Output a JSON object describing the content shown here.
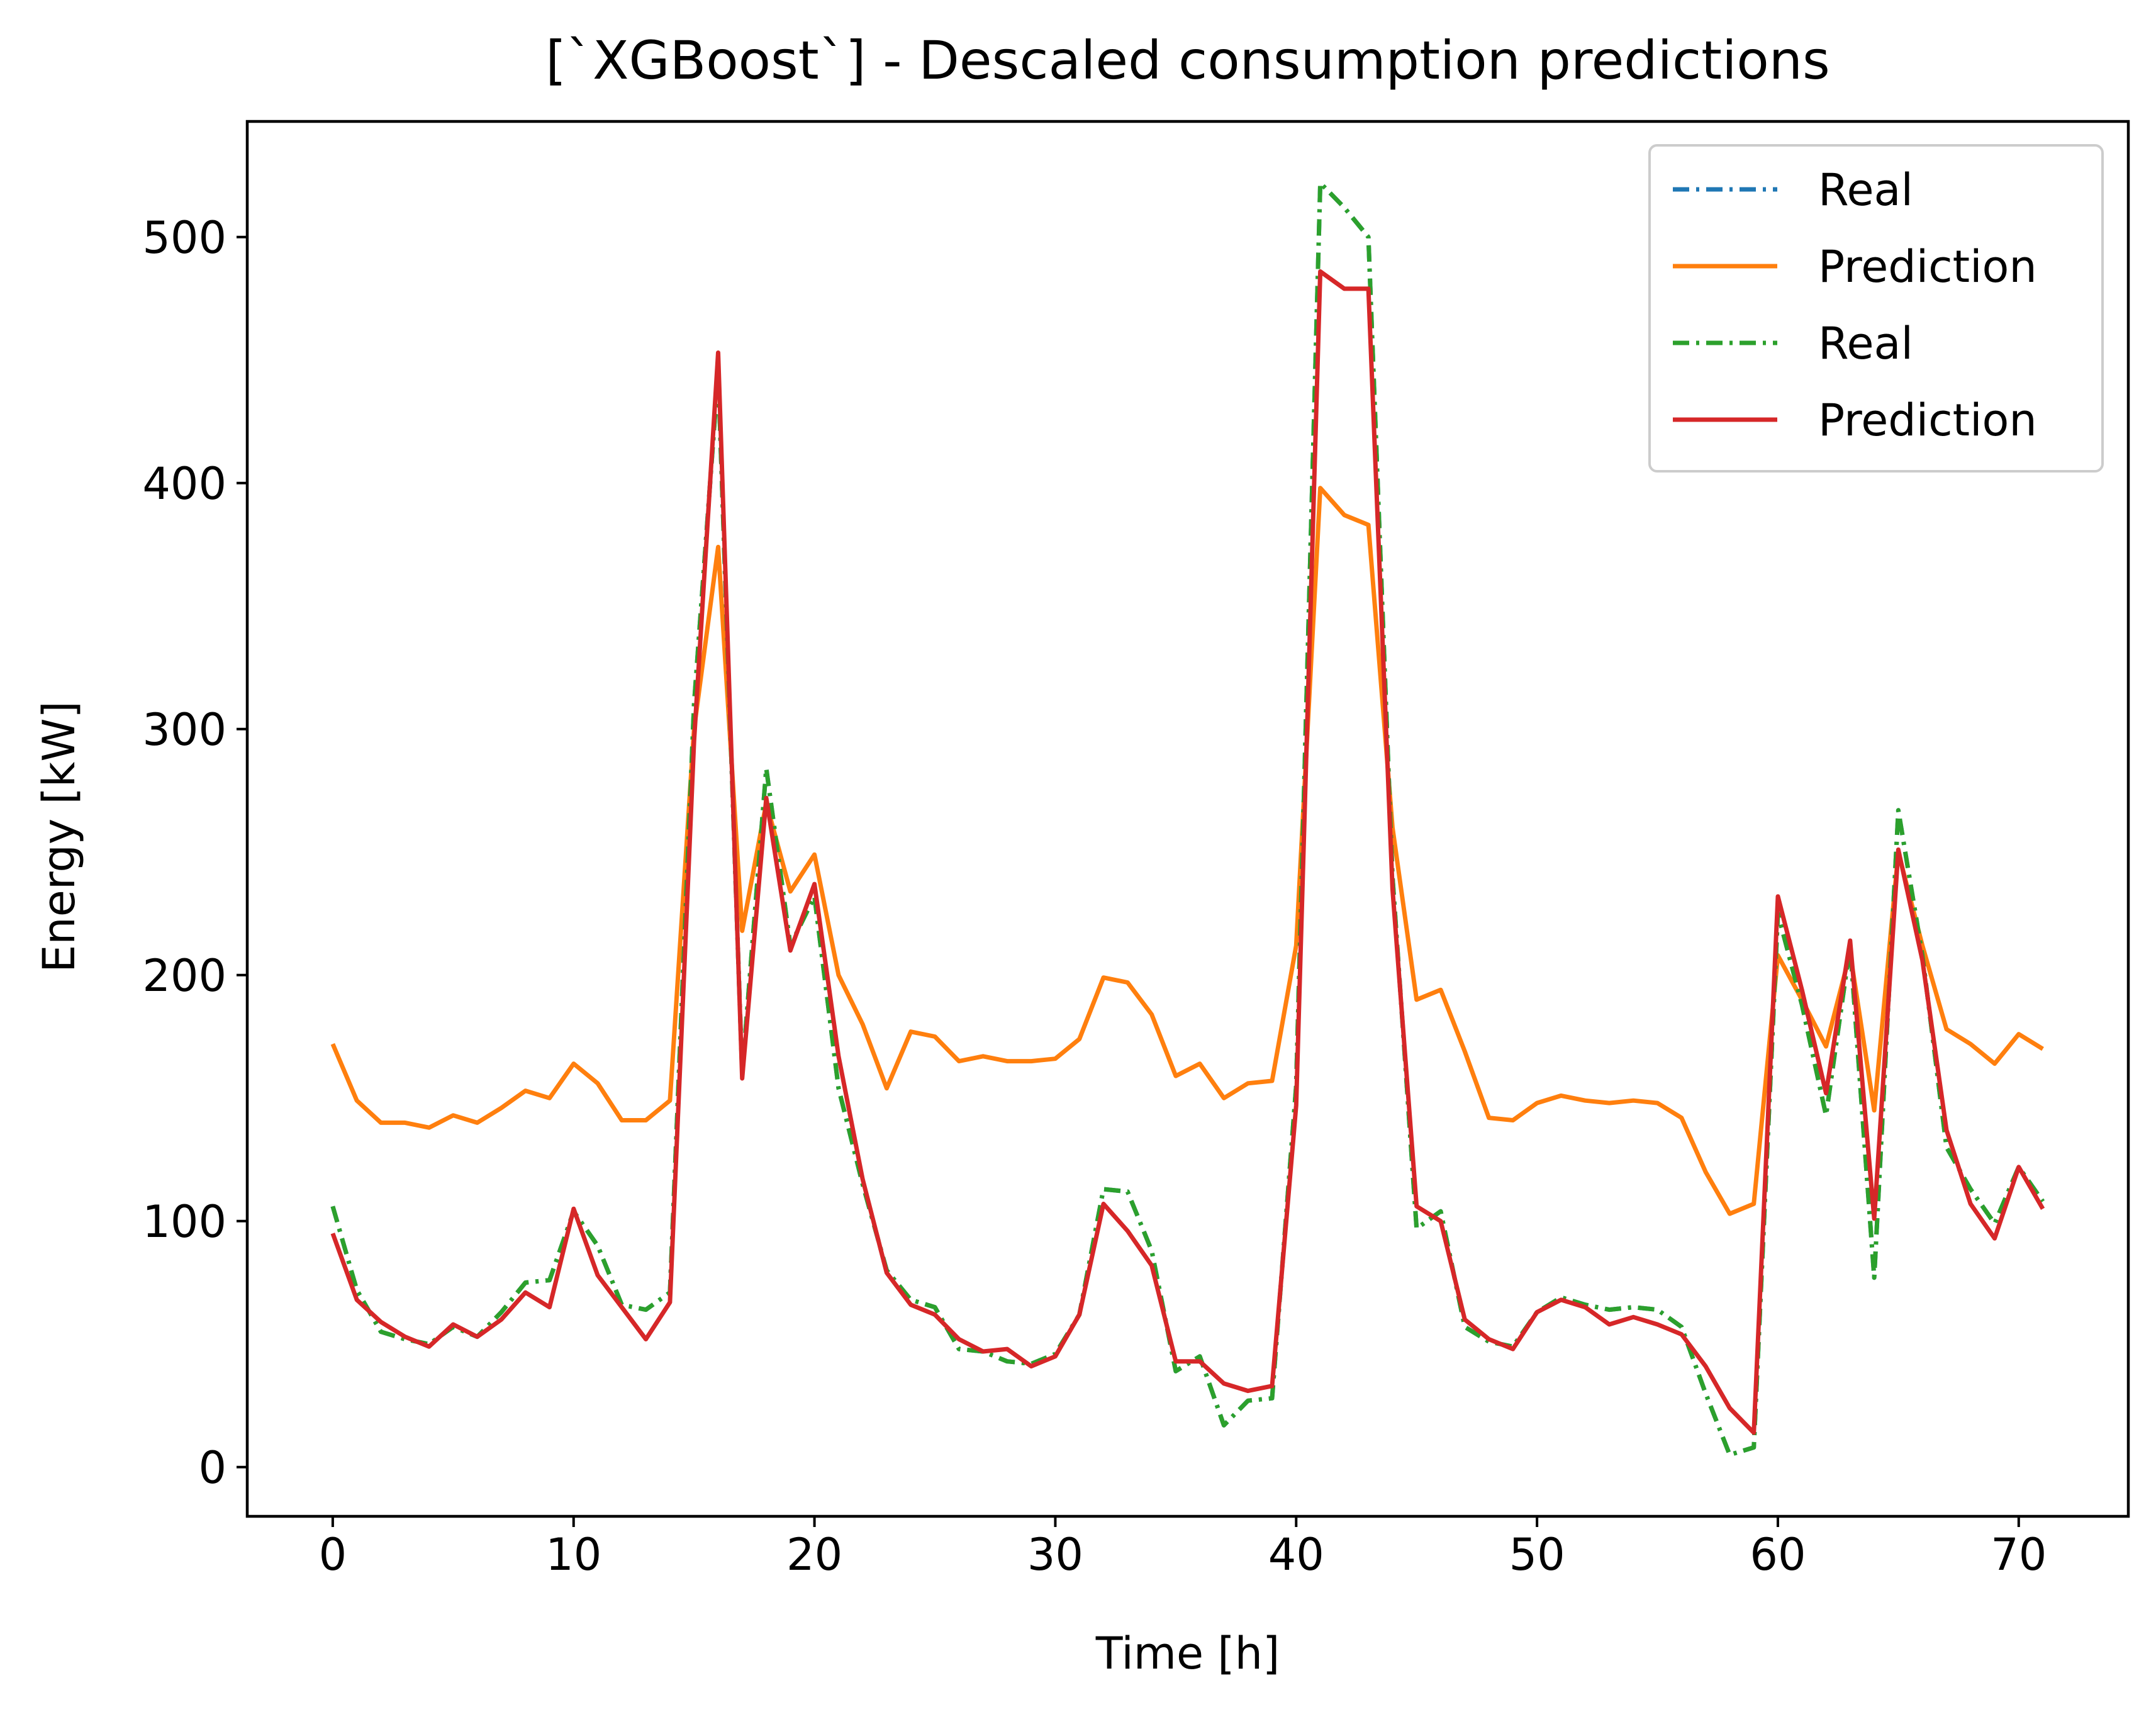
{
  "chart_data": {
    "type": "line",
    "title": "[`XGBoost`] - Descaled consumption predictions",
    "xlabel": "Time [h]",
    "ylabel": "Energy [kW]",
    "xlim": [
      -3.55,
      74.55
    ],
    "ylim": [
      -20,
      547
    ],
    "xticks": [
      0,
      10,
      20,
      30,
      40,
      50,
      60,
      70
    ],
    "xtick_labels": [
      "0",
      "10",
      "20",
      "30",
      "40",
      "50",
      "60",
      "70"
    ],
    "yticks": [
      0,
      100,
      200,
      300,
      400,
      500
    ],
    "ytick_labels": [
      "0",
      "100",
      "200",
      "300",
      "400",
      "500"
    ],
    "grid": false,
    "legend_position": "top-right",
    "x": [
      0,
      1,
      2,
      3,
      4,
      5,
      6,
      7,
      8,
      9,
      10,
      11,
      12,
      13,
      14,
      15,
      16,
      17,
      18,
      19,
      20,
      21,
      22,
      23,
      24,
      25,
      26,
      27,
      28,
      29,
      30,
      31,
      32,
      33,
      34,
      35,
      36,
      37,
      38,
      39,
      40,
      41,
      42,
      43,
      44,
      45,
      46,
      47,
      48,
      49,
      50,
      51,
      52,
      53,
      54,
      55,
      56,
      57,
      58,
      59,
      60,
      61,
      62,
      63,
      64,
      65,
      66,
      67,
      68,
      69,
      70,
      71
    ],
    "series": [
      {
        "name": "Real",
        "color": "#1f77b4",
        "style": "dashdot",
        "values": [
          106,
          72,
          55,
          52,
          50,
          57,
          53,
          63,
          75,
          76,
          104,
          90,
          66,
          64,
          71,
          310,
          445,
          160,
          284,
          212,
          232,
          154,
          115,
          80,
          68,
          65,
          48,
          47,
          43,
          42,
          46,
          62,
          113,
          112,
          88,
          39,
          45,
          17,
          27,
          28,
          155,
          522,
          512,
          500,
          240,
          97,
          104,
          57,
          51,
          49,
          63,
          69,
          66,
          64,
          65,
          64,
          57,
          30,
          5,
          8,
          225,
          188,
          143,
          212,
          77,
          267,
          208,
          130,
          113,
          99,
          122,
          108
        ]
      },
      {
        "name": "Prediction",
        "color": "#ff7f0e",
        "style": "solid",
        "values": [
          172,
          149,
          140,
          140,
          138,
          143,
          140,
          146,
          153,
          150,
          164,
          156,
          141,
          141,
          149,
          300,
          374,
          218,
          270,
          234,
          249,
          200,
          180,
          154,
          177,
          175,
          165,
          167,
          165,
          165,
          166,
          174,
          199,
          197,
          184,
          159,
          164,
          150,
          156,
          157,
          212,
          398,
          387,
          383,
          260,
          190,
          194,
          169,
          142,
          141,
          148,
          151,
          149,
          148,
          149,
          148,
          142,
          120,
          103,
          107,
          208,
          190,
          171,
          209,
          145,
          250,
          212,
          178,
          172,
          164,
          176,
          170
        ]
      },
      {
        "name": "Real",
        "color": "#2ca02c",
        "style": "dashdot",
        "values": [
          106,
          72,
          55,
          52,
          50,
          57,
          53,
          63,
          75,
          76,
          104,
          90,
          66,
          64,
          71,
          310,
          445,
          160,
          284,
          212,
          232,
          154,
          115,
          80,
          68,
          65,
          48,
          47,
          43,
          42,
          46,
          62,
          113,
          112,
          88,
          39,
          45,
          17,
          27,
          28,
          155,
          522,
          512,
          500,
          240,
          97,
          104,
          57,
          51,
          49,
          63,
          69,
          66,
          64,
          65,
          64,
          57,
          30,
          5,
          8,
          225,
          188,
          143,
          212,
          77,
          267,
          208,
          130,
          113,
          99,
          122,
          108
        ]
      },
      {
        "name": "Prediction",
        "color": "#d62728",
        "style": "solid",
        "values": [
          95,
          68,
          59,
          53,
          49,
          58,
          53,
          60,
          71,
          65,
          105,
          78,
          65,
          52,
          67,
          295,
          453,
          158,
          272,
          210,
          237,
          167,
          117,
          79,
          66,
          62,
          52,
          47,
          48,
          41,
          45,
          62,
          107,
          96,
          82,
          43,
          43,
          34,
          31,
          33,
          147,
          486,
          479,
          479,
          235,
          106,
          100,
          60,
          52,
          48,
          63,
          68,
          65,
          58,
          61,
          58,
          54,
          41,
          24,
          14,
          232,
          194,
          152,
          214,
          101,
          251,
          206,
          137,
          107,
          93,
          122,
          105
        ]
      }
    ]
  }
}
